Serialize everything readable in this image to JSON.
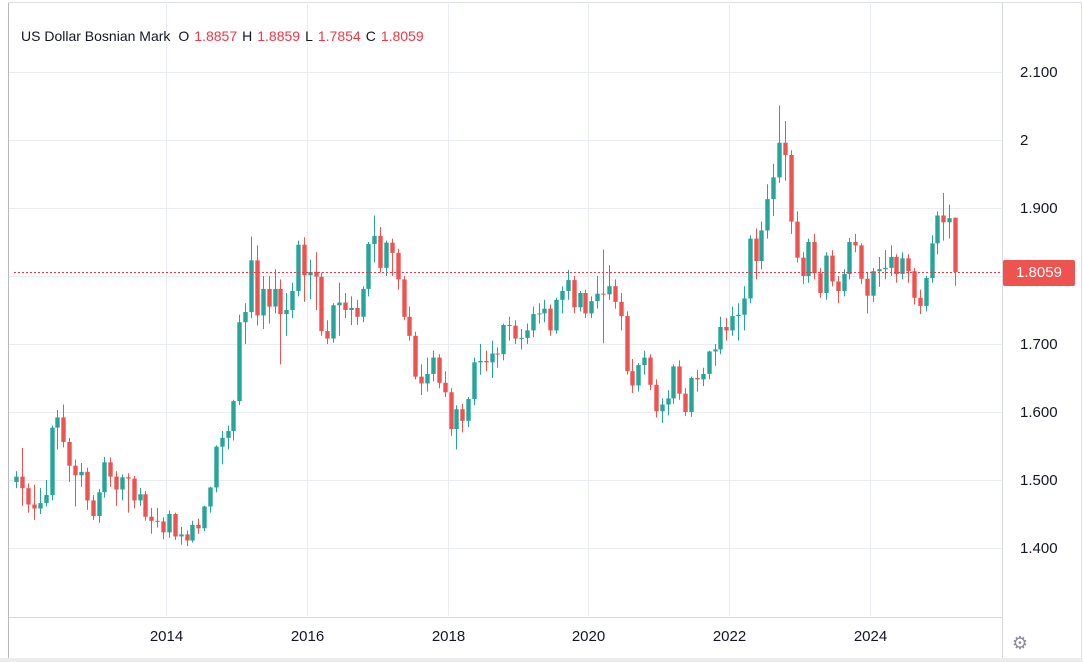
{
  "header": {
    "symbol_title": "US Dollar Bosnian Mark",
    "ohlc": [
      {
        "label": "O",
        "value": "1.8857"
      },
      {
        "label": "H",
        "value": "1.8859"
      },
      {
        "label": "L",
        "value": "1.7854"
      },
      {
        "label": "C",
        "value": "1.8059"
      }
    ]
  },
  "colors": {
    "up": "#26a69a",
    "down": "#ef5350",
    "accent_red": "#f23645",
    "text": "#131722",
    "grid": "#e9ecf1"
  },
  "price_line": {
    "value": 1.8059,
    "label": "1.8059"
  },
  "y_axis": {
    "ticks": [
      {
        "value": 2.1,
        "label": "2.100"
      },
      {
        "value": 2.0,
        "label": "2"
      },
      {
        "value": 1.9,
        "label": "1.900"
      },
      {
        "value": 1.8,
        "label": ""
      },
      {
        "value": 1.7,
        "label": "1.700"
      },
      {
        "value": 1.6,
        "label": "1.600"
      },
      {
        "value": 1.5,
        "label": "1.500"
      },
      {
        "value": 1.4,
        "label": "1.400"
      }
    ]
  },
  "x_axis": {
    "ticks": [
      {
        "year": 2014,
        "label": "2014"
      },
      {
        "year": 2016,
        "label": "2016"
      },
      {
        "year": 2018,
        "label": "2018"
      },
      {
        "year": 2020,
        "label": "2020"
      },
      {
        "year": 2022,
        "label": "2022"
      },
      {
        "year": 2024,
        "label": "2024"
      }
    ]
  },
  "toolbar": {
    "gear_icon": "⚙"
  },
  "chart_data": {
    "type": "candlestick",
    "title": "US Dollar Bosnian Mark",
    "ohlc_display": {
      "open": 1.8857,
      "high": 1.8859,
      "low": 1.7854,
      "close": 1.8059
    },
    "ylim": [
      1.3,
      2.18
    ],
    "y_ticks": [
      1.4,
      1.5,
      1.6,
      1.7,
      1.8,
      1.9,
      2.0,
      2.1
    ],
    "x_ticks": [
      2014,
      2016,
      2018,
      2020,
      2022,
      2024
    ],
    "candle_format": [
      "month",
      "open",
      "high",
      "low",
      "close"
    ],
    "candles": [
      [
        "2011-11",
        1.497,
        1.513,
        1.488,
        1.505
      ],
      [
        "2011-12",
        1.505,
        1.547,
        1.462,
        1.488
      ],
      [
        "2012-01",
        1.488,
        1.495,
        1.452,
        1.464
      ],
      [
        "2012-02",
        1.464,
        1.493,
        1.441,
        1.458
      ],
      [
        "2012-03",
        1.458,
        1.488,
        1.45,
        1.466
      ],
      [
        "2012-04",
        1.466,
        1.5,
        1.461,
        1.478
      ],
      [
        "2012-05",
        1.478,
        1.58,
        1.47,
        1.577
      ],
      [
        "2012-06",
        1.577,
        1.603,
        1.545,
        1.592
      ],
      [
        "2012-07",
        1.592,
        1.611,
        1.548,
        1.556
      ],
      [
        "2012-08",
        1.556,
        1.562,
        1.497,
        1.521
      ],
      [
        "2012-09",
        1.521,
        1.53,
        1.461,
        1.507
      ],
      [
        "2012-10",
        1.507,
        1.525,
        1.49,
        1.512
      ],
      [
        "2012-11",
        1.512,
        1.518,
        1.456,
        1.47
      ],
      [
        "2012-12",
        1.47,
        1.478,
        1.441,
        1.447
      ],
      [
        "2013-01",
        1.447,
        1.487,
        1.437,
        1.482
      ],
      [
        "2013-02",
        1.482,
        1.534,
        1.474,
        1.526
      ],
      [
        "2013-03",
        1.526,
        1.533,
        1.49,
        1.505
      ],
      [
        "2013-04",
        1.505,
        1.513,
        1.462,
        1.486
      ],
      [
        "2013-05",
        1.486,
        1.508,
        1.47,
        1.504
      ],
      [
        "2013-06",
        1.504,
        1.51,
        1.452,
        1.502
      ],
      [
        "2013-07",
        1.502,
        1.506,
        1.458,
        1.47
      ],
      [
        "2013-08",
        1.47,
        1.488,
        1.462,
        1.479
      ],
      [
        "2013-09",
        1.479,
        1.484,
        1.44,
        1.446
      ],
      [
        "2013-10",
        1.446,
        1.459,
        1.421,
        1.44
      ],
      [
        "2013-11",
        1.44,
        1.459,
        1.43,
        1.439
      ],
      [
        "2013-12",
        1.439,
        1.445,
        1.413,
        1.423
      ],
      [
        "2014-01",
        1.423,
        1.455,
        1.415,
        1.45
      ],
      [
        "2014-02",
        1.45,
        1.452,
        1.412,
        1.417
      ],
      [
        "2014-03",
        1.417,
        1.431,
        1.405,
        1.42
      ],
      [
        "2014-04",
        1.42,
        1.426,
        1.403,
        1.411
      ],
      [
        "2014-05",
        1.411,
        1.44,
        1.408,
        1.434
      ],
      [
        "2014-06",
        1.434,
        1.443,
        1.421,
        1.429
      ],
      [
        "2014-07",
        1.429,
        1.462,
        1.425,
        1.461
      ],
      [
        "2014-08",
        1.461,
        1.49,
        1.452,
        1.489
      ],
      [
        "2014-09",
        1.489,
        1.551,
        1.482,
        1.549
      ],
      [
        "2014-10",
        1.549,
        1.572,
        1.523,
        1.562
      ],
      [
        "2014-11",
        1.562,
        1.58,
        1.545,
        1.572
      ],
      [
        "2014-12",
        1.572,
        1.618,
        1.558,
        1.616
      ],
      [
        "2015-01",
        1.616,
        1.743,
        1.61,
        1.732
      ],
      [
        "2015-02",
        1.732,
        1.76,
        1.7,
        1.747
      ],
      [
        "2015-03",
        1.747,
        1.858,
        1.738,
        1.823
      ],
      [
        "2015-04",
        1.823,
        1.845,
        1.727,
        1.742
      ],
      [
        "2015-05",
        1.742,
        1.8,
        1.722,
        1.781
      ],
      [
        "2015-06",
        1.781,
        1.8,
        1.73,
        1.755
      ],
      [
        "2015-07",
        1.755,
        1.81,
        1.745,
        1.781
      ],
      [
        "2015-08",
        1.781,
        1.795,
        1.67,
        1.744
      ],
      [
        "2015-09",
        1.744,
        1.775,
        1.712,
        1.75
      ],
      [
        "2015-10",
        1.75,
        1.79,
        1.738,
        1.778
      ],
      [
        "2015-11",
        1.778,
        1.852,
        1.77,
        1.846
      ],
      [
        "2015-12",
        1.846,
        1.857,
        1.762,
        1.801
      ],
      [
        "2016-01",
        1.801,
        1.824,
        1.766,
        1.806
      ],
      [
        "2016-02",
        1.806,
        1.835,
        1.75,
        1.799
      ],
      [
        "2016-03",
        1.799,
        1.805,
        1.712,
        1.719
      ],
      [
        "2016-04",
        1.719,
        1.735,
        1.7,
        1.708
      ],
      [
        "2016-05",
        1.708,
        1.76,
        1.702,
        1.757
      ],
      [
        "2016-06",
        1.757,
        1.79,
        1.712,
        1.761
      ],
      [
        "2016-07",
        1.761,
        1.775,
        1.738,
        1.75
      ],
      [
        "2016-08",
        1.75,
        1.77,
        1.728,
        1.753
      ],
      [
        "2016-09",
        1.753,
        1.765,
        1.728,
        1.74
      ],
      [
        "2016-10",
        1.74,
        1.785,
        1.732,
        1.781
      ],
      [
        "2016-11",
        1.781,
        1.85,
        1.77,
        1.847
      ],
      [
        "2016-12",
        1.847,
        1.889,
        1.82,
        1.859
      ],
      [
        "2017-01",
        1.859,
        1.872,
        1.805,
        1.812
      ],
      [
        "2017-02",
        1.812,
        1.852,
        1.8,
        1.849
      ],
      [
        "2017-03",
        1.849,
        1.855,
        1.8,
        1.834
      ],
      [
        "2017-04",
        1.834,
        1.84,
        1.78,
        1.795
      ],
      [
        "2017-05",
        1.795,
        1.8,
        1.735,
        1.74
      ],
      [
        "2017-06",
        1.74,
        1.755,
        1.705,
        1.712
      ],
      [
        "2017-07",
        1.712,
        1.718,
        1.648,
        1.652
      ],
      [
        "2017-08",
        1.652,
        1.67,
        1.625,
        1.642
      ],
      [
        "2017-09",
        1.642,
        1.68,
        1.63,
        1.656
      ],
      [
        "2017-10",
        1.656,
        1.69,
        1.645,
        1.68
      ],
      [
        "2017-11",
        1.68,
        1.685,
        1.635,
        1.643
      ],
      [
        "2017-12",
        1.643,
        1.66,
        1.622,
        1.629
      ],
      [
        "2018-01",
        1.629,
        1.635,
        1.565,
        1.575
      ],
      [
        "2018-02",
        1.575,
        1.61,
        1.545,
        1.604
      ],
      [
        "2018-03",
        1.604,
        1.612,
        1.57,
        1.587
      ],
      [
        "2018-04",
        1.587,
        1.622,
        1.578,
        1.619
      ],
      [
        "2018-05",
        1.619,
        1.68,
        1.61,
        1.673
      ],
      [
        "2018-06",
        1.673,
        1.7,
        1.655,
        1.675
      ],
      [
        "2018-07",
        1.675,
        1.69,
        1.66,
        1.673
      ],
      [
        "2018-08",
        1.673,
        1.705,
        1.65,
        1.686
      ],
      [
        "2018-09",
        1.686,
        1.695,
        1.665,
        1.685
      ],
      [
        "2018-10",
        1.685,
        1.73,
        1.676,
        1.728
      ],
      [
        "2018-11",
        1.728,
        1.74,
        1.705,
        1.727
      ],
      [
        "2018-12",
        1.727,
        1.735,
        1.7,
        1.708
      ],
      [
        "2019-01",
        1.708,
        1.722,
        1.692,
        1.709
      ],
      [
        "2019-02",
        1.709,
        1.73,
        1.7,
        1.72
      ],
      [
        "2019-03",
        1.72,
        1.755,
        1.71,
        1.744
      ],
      [
        "2019-04",
        1.744,
        1.76,
        1.73,
        1.745
      ],
      [
        "2019-05",
        1.745,
        1.765,
        1.732,
        1.752
      ],
      [
        "2019-06",
        1.752,
        1.758,
        1.712,
        1.72
      ],
      [
        "2019-07",
        1.72,
        1.768,
        1.715,
        1.765
      ],
      [
        "2019-08",
        1.765,
        1.785,
        1.745,
        1.778
      ],
      [
        "2019-09",
        1.778,
        1.809,
        1.765,
        1.794
      ],
      [
        "2019-10",
        1.794,
        1.8,
        1.745,
        1.754
      ],
      [
        "2019-11",
        1.754,
        1.778,
        1.748,
        1.775
      ],
      [
        "2019-12",
        1.775,
        1.78,
        1.738,
        1.745
      ],
      [
        "2020-01",
        1.745,
        1.77,
        1.738,
        1.763
      ],
      [
        "2020-02",
        1.763,
        1.8,
        1.752,
        1.774
      ],
      [
        "2020-03",
        1.774,
        1.839,
        1.701,
        1.773
      ],
      [
        "2020-04",
        1.773,
        1.816,
        1.765,
        1.785
      ],
      [
        "2020-05",
        1.785,
        1.795,
        1.752,
        1.762
      ],
      [
        "2020-06",
        1.762,
        1.775,
        1.72,
        1.741
      ],
      [
        "2020-07",
        1.741,
        1.748,
        1.655,
        1.66
      ],
      [
        "2020-08",
        1.66,
        1.678,
        1.628,
        1.639
      ],
      [
        "2020-09",
        1.639,
        1.672,
        1.63,
        1.669
      ],
      [
        "2020-10",
        1.669,
        1.69,
        1.655,
        1.68
      ],
      [
        "2020-11",
        1.68,
        1.685,
        1.632,
        1.64
      ],
      [
        "2020-12",
        1.64,
        1.648,
        1.592,
        1.601
      ],
      [
        "2021-01",
        1.601,
        1.62,
        1.584,
        1.611
      ],
      [
        "2021-02",
        1.611,
        1.632,
        1.595,
        1.62
      ],
      [
        "2021-03",
        1.62,
        1.67,
        1.612,
        1.667
      ],
      [
        "2021-04",
        1.667,
        1.676,
        1.618,
        1.627
      ],
      [
        "2021-05",
        1.627,
        1.635,
        1.594,
        1.6
      ],
      [
        "2021-06",
        1.6,
        1.652,
        1.593,
        1.65
      ],
      [
        "2021-07",
        1.65,
        1.662,
        1.63,
        1.648
      ],
      [
        "2021-08",
        1.648,
        1.665,
        1.638,
        1.656
      ],
      [
        "2021-09",
        1.656,
        1.69,
        1.648,
        1.689
      ],
      [
        "2021-10",
        1.689,
        1.7,
        1.668,
        1.692
      ],
      [
        "2021-11",
        1.692,
        1.74,
        1.685,
        1.725
      ],
      [
        "2021-12",
        1.725,
        1.738,
        1.705,
        1.72
      ],
      [
        "2022-01",
        1.72,
        1.755,
        1.712,
        1.741
      ],
      [
        "2022-02",
        1.741,
        1.76,
        1.705,
        1.743
      ],
      [
        "2022-03",
        1.743,
        1.785,
        1.72,
        1.767
      ],
      [
        "2022-04",
        1.767,
        1.86,
        1.76,
        1.855
      ],
      [
        "2022-05",
        1.855,
        1.87,
        1.795,
        1.822
      ],
      [
        "2022-06",
        1.822,
        1.88,
        1.81,
        1.867
      ],
      [
        "2022-07",
        1.867,
        1.935,
        1.855,
        1.913
      ],
      [
        "2022-08",
        1.913,
        1.965,
        1.888,
        1.945
      ],
      [
        "2022-09",
        1.945,
        2.051,
        1.937,
        1.996
      ],
      [
        "2022-10",
        1.996,
        2.028,
        1.94,
        1.978
      ],
      [
        "2022-11",
        1.978,
        1.985,
        1.862,
        1.88
      ],
      [
        "2022-12",
        1.88,
        1.895,
        1.82,
        1.827
      ],
      [
        "2023-01",
        1.827,
        1.835,
        1.788,
        1.8
      ],
      [
        "2023-02",
        1.8,
        1.855,
        1.79,
        1.85
      ],
      [
        "2023-03",
        1.85,
        1.862,
        1.795,
        1.804
      ],
      [
        "2023-04",
        1.804,
        1.812,
        1.768,
        1.775
      ],
      [
        "2023-05",
        1.775,
        1.835,
        1.765,
        1.83
      ],
      [
        "2023-06",
        1.83,
        1.838,
        1.785,
        1.792
      ],
      [
        "2023-07",
        1.792,
        1.8,
        1.76,
        1.778
      ],
      [
        "2023-08",
        1.778,
        1.81,
        1.77,
        1.803
      ],
      [
        "2023-09",
        1.803,
        1.856,
        1.795,
        1.85
      ],
      [
        "2023-10",
        1.85,
        1.862,
        1.835,
        1.845
      ],
      [
        "2023-11",
        1.845,
        1.848,
        1.788,
        1.796
      ],
      [
        "2023-12",
        1.796,
        1.805,
        1.745,
        1.771
      ],
      [
        "2024-01",
        1.771,
        1.812,
        1.762,
        1.807
      ],
      [
        "2024-02",
        1.807,
        1.828,
        1.784,
        1.81
      ],
      [
        "2024-03",
        1.81,
        1.838,
        1.795,
        1.812
      ],
      [
        "2024-04",
        1.812,
        1.845,
        1.8,
        1.828
      ],
      [
        "2024-05",
        1.828,
        1.832,
        1.79,
        1.803
      ],
      [
        "2024-06",
        1.803,
        1.835,
        1.795,
        1.826
      ],
      [
        "2024-07",
        1.826,
        1.832,
        1.79,
        1.807
      ],
      [
        "2024-08",
        1.807,
        1.812,
        1.758,
        1.768
      ],
      [
        "2024-09",
        1.768,
        1.78,
        1.744,
        1.756
      ],
      [
        "2024-10",
        1.756,
        1.8,
        1.748,
        1.797
      ],
      [
        "2024-11",
        1.797,
        1.86,
        1.79,
        1.848
      ],
      [
        "2024-12",
        1.848,
        1.895,
        1.832,
        1.889
      ],
      [
        "2025-01",
        1.889,
        1.922,
        1.852,
        1.879
      ],
      [
        "2025-02",
        1.879,
        1.905,
        1.855,
        1.885
      ],
      [
        "2025-03",
        1.8857,
        1.8859,
        1.7854,
        1.8059
      ]
    ]
  }
}
